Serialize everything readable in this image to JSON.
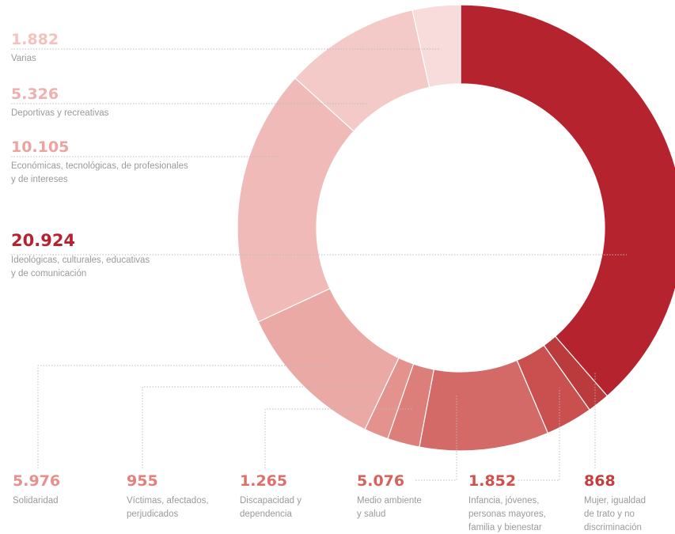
{
  "chart_data": {
    "type": "pie",
    "style": "donut",
    "categories": [
      "Ideológicas, culturales, educativas y de comunicación",
      "Mujer, igualdad de trato y no discriminación",
      "Infancia, jóvenes, personas mayores, familia y bienestar",
      "Medio ambiente y salud",
      "Discapacidad y dependencia",
      "Víctimas, afectados, perjudicados",
      "Solidaridad",
      "Económicas, tecnológicas, de profesionales y de intereses",
      "Deportivas y recreativas",
      "Varias"
    ],
    "values": [
      20924,
      868,
      1852,
      5076,
      1265,
      955,
      5976,
      10105,
      5326,
      1882
    ],
    "value_labels": [
      "20.924",
      "868",
      "1.852",
      "5.076",
      "1.265",
      "955",
      "5.976",
      "10.105",
      "5.326",
      "1.882"
    ],
    "label_lines": [
      [
        "Ideológicas, culturales, educativas",
        "y de comunicación"
      ],
      [
        "Mujer, igualdad",
        "de trato y no",
        "discriminación"
      ],
      [
        "Infancia, jóvenes,",
        "personas mayores,",
        "familia y bienestar"
      ],
      [
        "Medio ambiente",
        "y salud"
      ],
      [
        "Discapacidad y",
        "dependencia"
      ],
      [
        "Víctimas, afectados,",
        "perjudicados"
      ],
      [
        "Solidaridad"
      ],
      [
        "Económicas, tecnológicas, de profesionales",
        "y de intereses"
      ],
      [
        "Deportivas y recreativas"
      ],
      [
        "Varias"
      ]
    ],
    "colors": [
      "#b5232e",
      "#bb3a3c",
      "#c9504f",
      "#d36a67",
      "#dc7e7a",
      "#e4928e",
      "#eba9a6",
      "#f0bab8",
      "#f4cac8",
      "#f8dcdb"
    ],
    "number_colors": [
      "#b5232e",
      "#c63d3d",
      "#d0504d",
      "#d7615d",
      "#dd706c",
      "#e3807c",
      "#e9908c",
      "#eda3a0",
      "#f0b0ad",
      "#f3c2bf"
    ]
  }
}
